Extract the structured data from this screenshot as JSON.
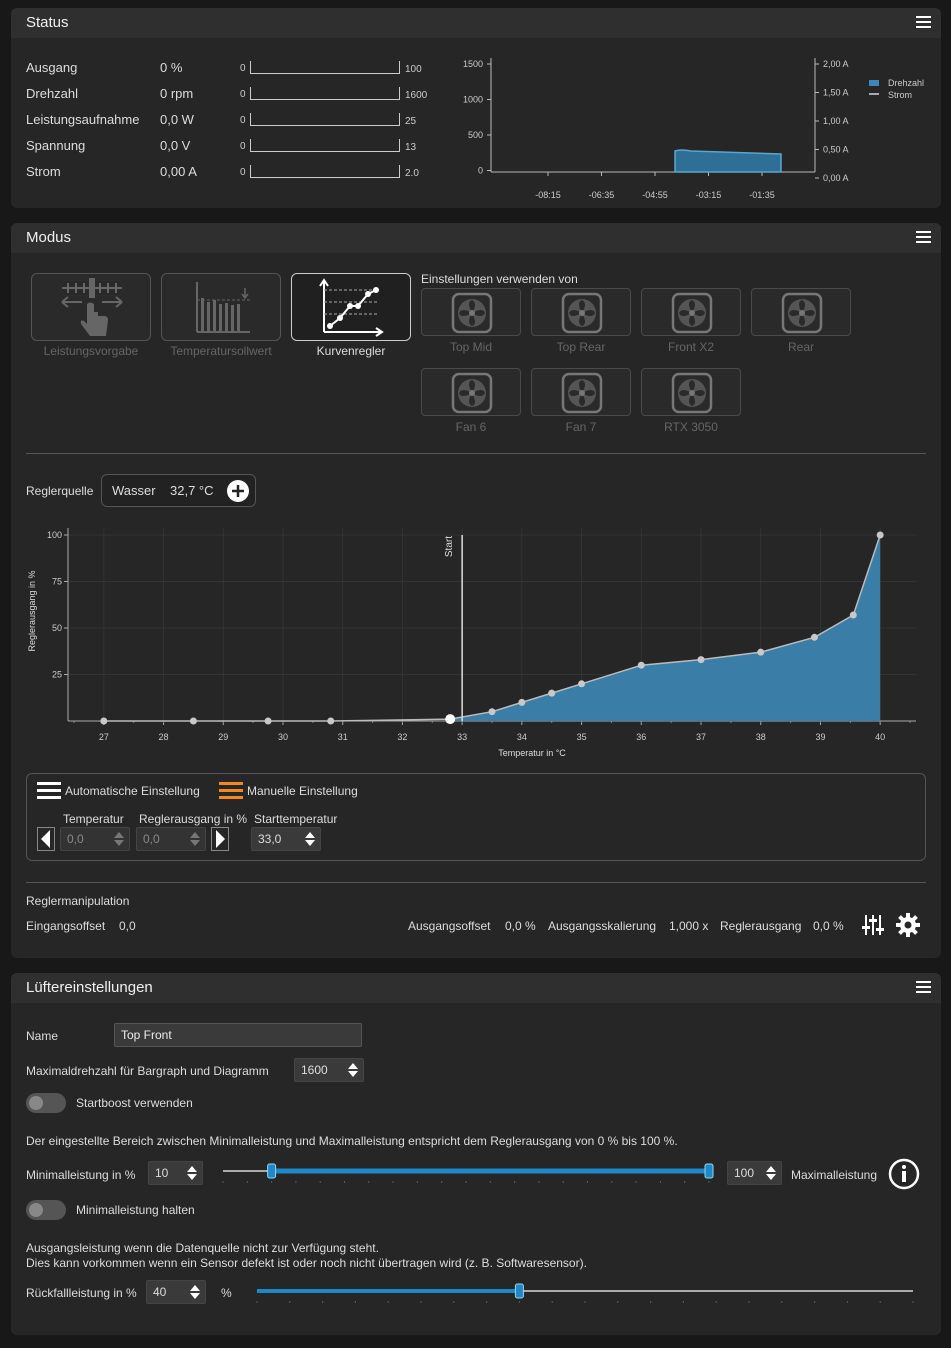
{
  "status": {
    "title": "Status",
    "rows": [
      {
        "label": "Ausgang",
        "value": "0 %",
        "min": "0",
        "max": "100"
      },
      {
        "label": "Drehzahl",
        "value": "0 rpm",
        "min": "0",
        "max": "1600"
      },
      {
        "label": "Leistungsaufnahme",
        "value": "0,0 W",
        "min": "0",
        "max": "25"
      },
      {
        "label": "Spannung",
        "value": "0,0 V",
        "min": "0",
        "max": "13"
      },
      {
        "label": "Strom",
        "value": "0,00 A",
        "min": "0",
        "max": "2.0"
      }
    ],
    "mini_chart": {
      "left_ticks": [
        "1500",
        "1000",
        "500",
        "0"
      ],
      "right_ticks": [
        "2,00 A",
        "1,50 A",
        "1,00 A",
        "0,50 A",
        "0,00 A"
      ],
      "x_ticks": [
        "-08:15",
        "-06:35",
        "-04:55",
        "-03:15",
        "-01:35"
      ],
      "legend": [
        "Drehzahl",
        "Strom"
      ]
    }
  },
  "modus": {
    "title": "Modus",
    "modes": [
      "Leistungsvorgabe",
      "Temperatursollwert",
      "Kurvenregler"
    ],
    "use_settings_label": "Einstellungen verwenden von",
    "fans": [
      "Top Mid",
      "Top Rear",
      "Front X2",
      "Rear",
      "Fan 6",
      "Fan 7",
      "RTX 3050"
    ],
    "source_label": "Reglerquelle",
    "source_name": "Wasser",
    "source_value": "32,7 °C",
    "auto_label": "Automatische Einstellung",
    "manual_label": "Manuelle Einstellung",
    "temp_label": "Temperatur",
    "out_label": "Reglerausgang in %",
    "start_label": "Starttemperatur",
    "temp_value": "0,0",
    "out_value": "0,0",
    "start_value": "33,0",
    "manip_label": "Reglermanipulation",
    "in_offset_label": "Eingangsoffset",
    "in_offset_value": "0,0",
    "out_offset_label": "Ausgangsoffset",
    "out_offset_value": "0,0 %",
    "out_scale_label": "Ausgangsskalierung",
    "out_scale_value": "1,000 x",
    "ctrl_out_label": "Reglerausgang",
    "ctrl_out_value": "0,0 %"
  },
  "chart_data": {
    "type": "area",
    "xlabel": "Temperatur in °C",
    "ylabel": "Reglerausgang in %",
    "x_ticks": [
      27,
      28,
      29,
      30,
      31,
      32,
      33,
      34,
      35,
      36,
      37,
      38,
      39,
      40
    ],
    "y_ticks": [
      25,
      50,
      75,
      100
    ],
    "xlim": [
      26.4,
      40.6
    ],
    "ylim": [
      0,
      100
    ],
    "start_marker": {
      "x": 33.0,
      "label": "Start"
    },
    "points": [
      {
        "x": 27.0,
        "y": 0
      },
      {
        "x": 28.5,
        "y": 0
      },
      {
        "x": 29.75,
        "y": 0
      },
      {
        "x": 30.8,
        "y": 0
      },
      {
        "x": 32.8,
        "y": 1
      },
      {
        "x": 33.5,
        "y": 5
      },
      {
        "x": 34.0,
        "y": 10
      },
      {
        "x": 34.5,
        "y": 15
      },
      {
        "x": 35.0,
        "y": 20
      },
      {
        "x": 36.0,
        "y": 30
      },
      {
        "x": 37.0,
        "y": 33
      },
      {
        "x": 38.0,
        "y": 37
      },
      {
        "x": 38.9,
        "y": 45
      },
      {
        "x": 39.55,
        "y": 57
      },
      {
        "x": 40.0,
        "y": 100
      }
    ],
    "colors": {
      "fill": "#3a7ea8",
      "line": "#bbbbbb"
    }
  },
  "fan_settings": {
    "title": "Lüftereinstellungen",
    "name_label": "Name",
    "name_value": "Top Front",
    "maxrpm_label": "Maximaldrehzahl für Bargraph und Diagramm",
    "maxrpm_value": "1600",
    "startboost_label": "Startboost verwenden",
    "range_text": "Der eingestellte Bereich zwischen Minimalleistung und Maximalleistung entspricht dem Reglerausgang von 0 % bis 100 %.",
    "min_label": "Minimalleistung in %",
    "min_value": "10",
    "max_value": "100",
    "max_label": "Maximalleistung",
    "min_hold_label": "Minimalleistung halten",
    "fallback_text1": "Ausgangsleistung wenn die Datenquelle nicht zur Verfügung steht.",
    "fallback_text2": "Dies kann vorkommen wenn ein Sensor defekt ist oder noch nicht übertragen wird (z. B. Softwaresensor).",
    "fallback_label": "Rückfallleistung in %",
    "fallback_value": "40",
    "percent": "%",
    "range_min": 10,
    "range_max": 100,
    "fallback_level": 40,
    "accent": "#1e88c8"
  }
}
